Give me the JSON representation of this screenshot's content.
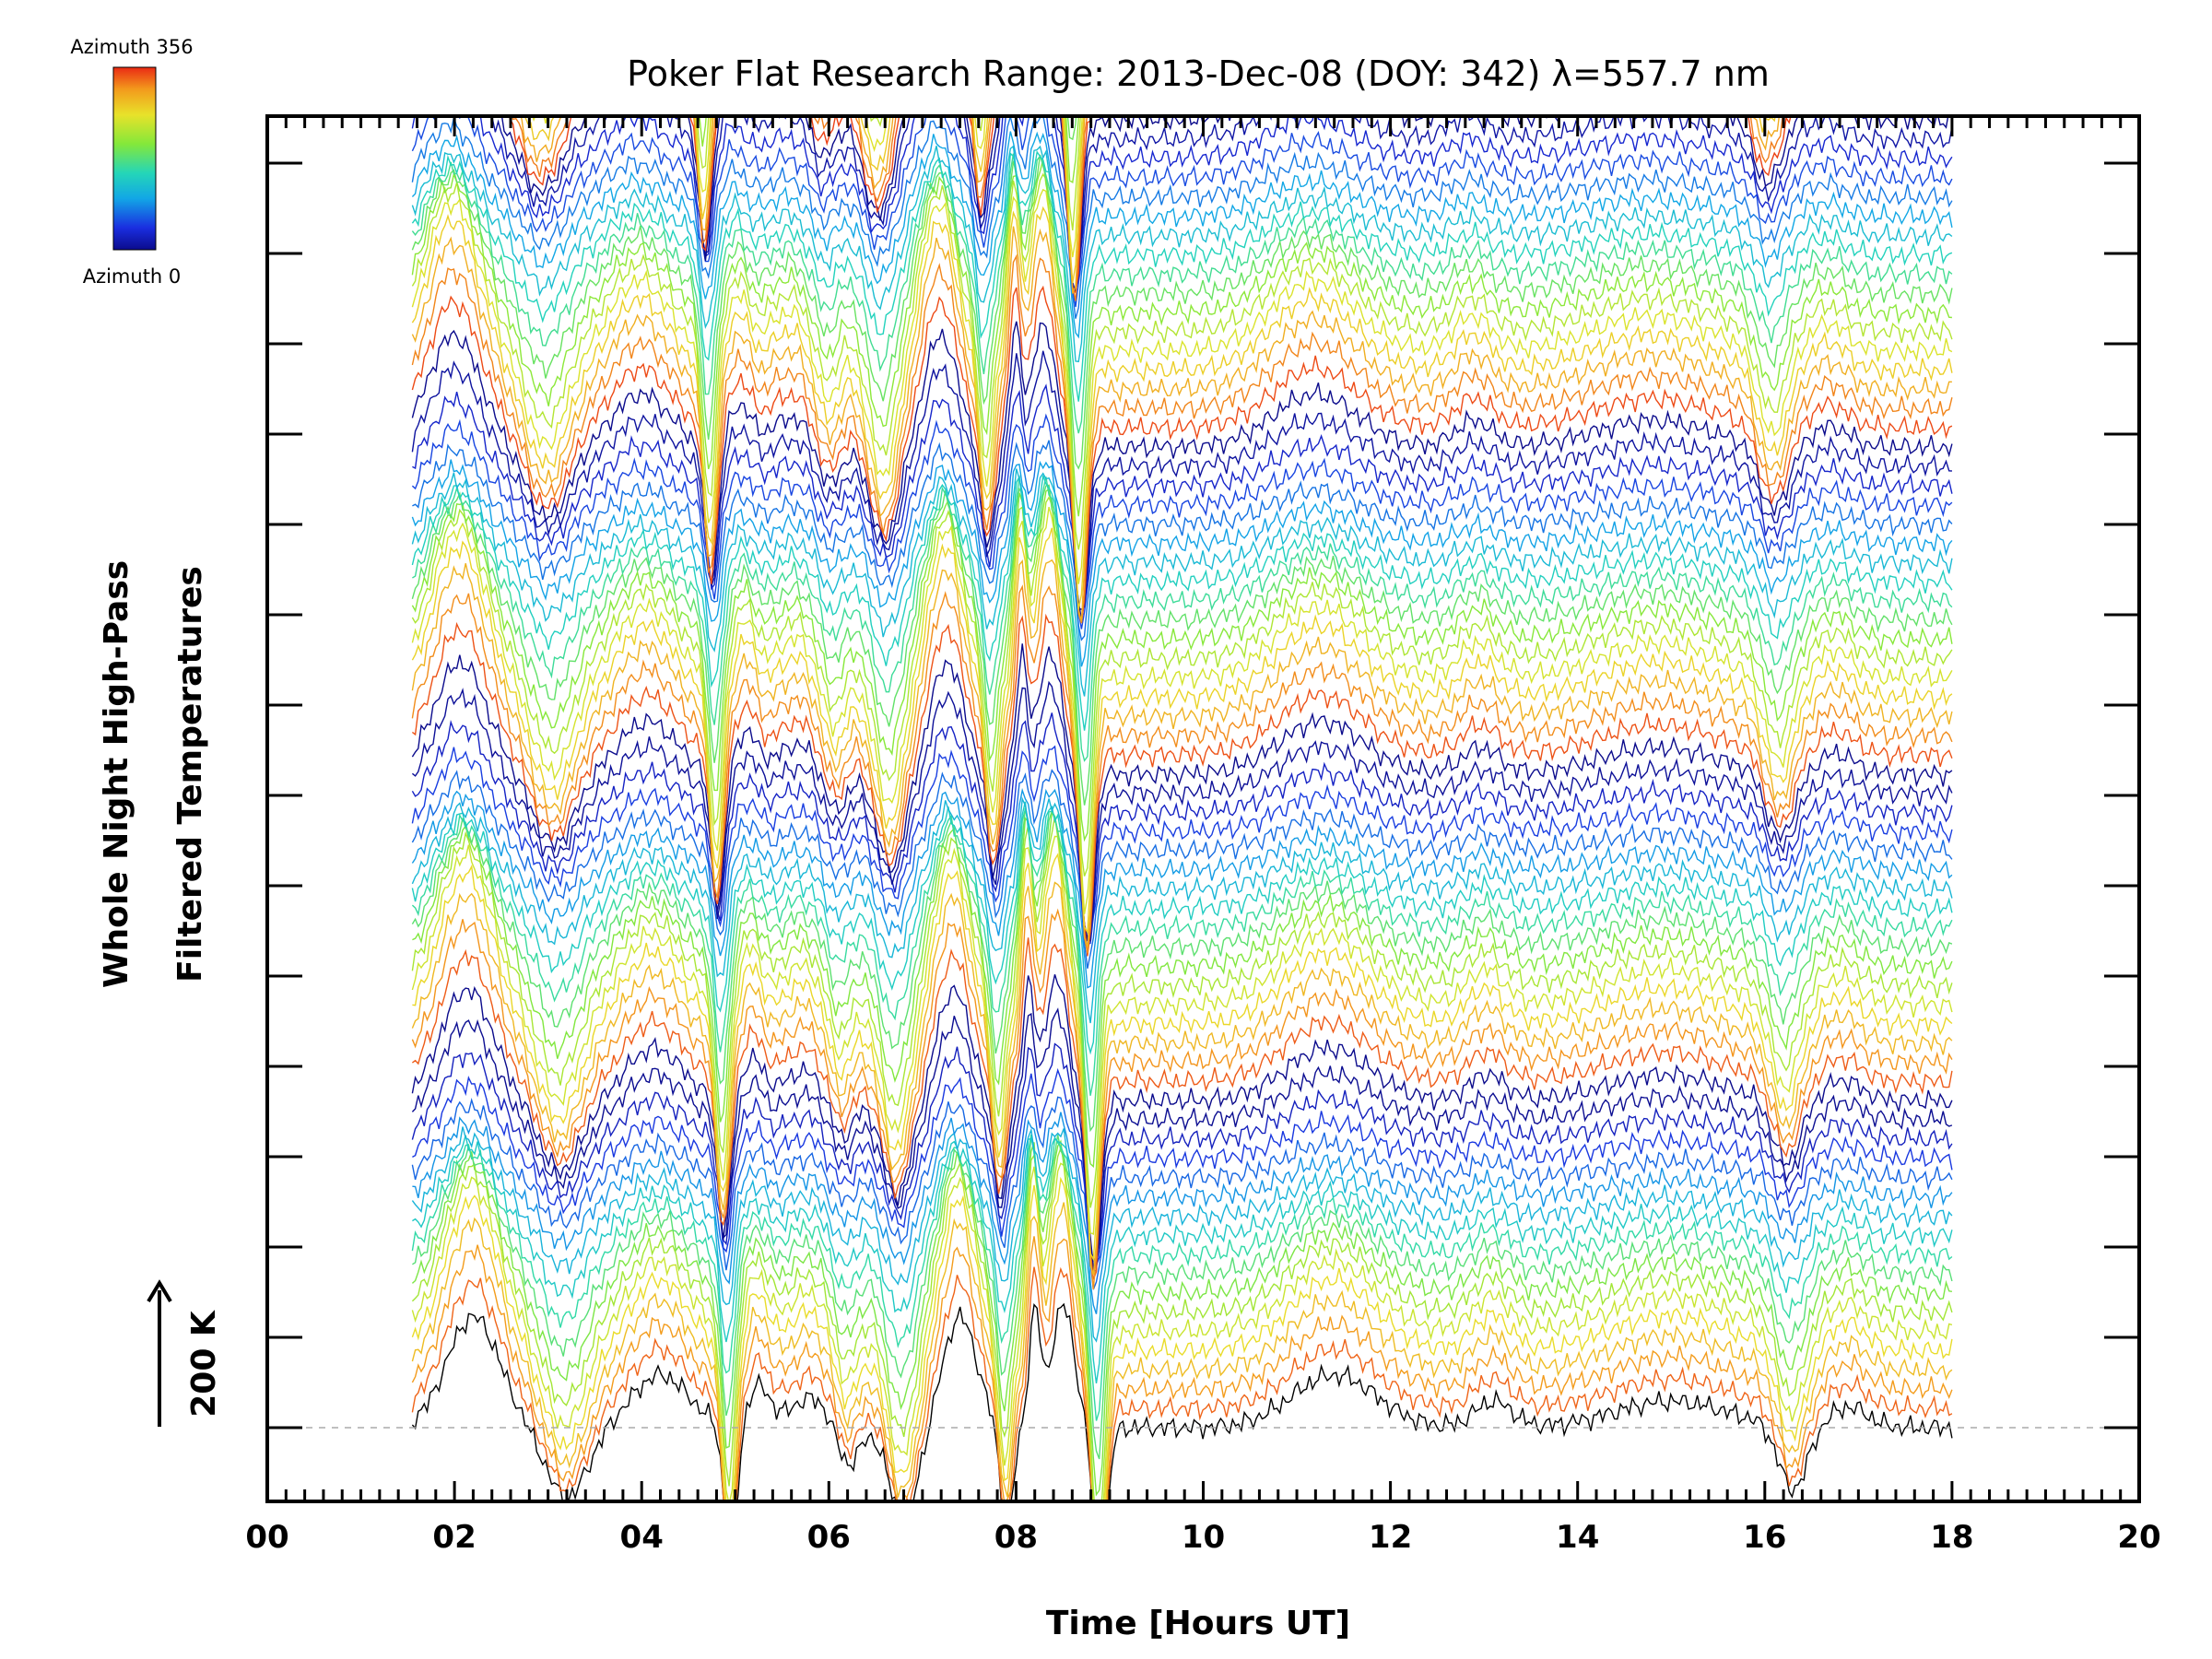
{
  "chart_data": {
    "type": "line",
    "title": "Poker Flat Research Range: 2013-Dec-08 (DOY: 342) λ=557.7 nm",
    "xlabel": "Time [Hours UT]",
    "ylabel": [
      "Whole Night High-Pass",
      "Filtered Temperatures"
    ],
    "xlim": [
      0,
      20
    ],
    "x_unit": "hours UT",
    "x_ticks": [
      "00",
      "02",
      "04",
      "06",
      "08",
      "10",
      "12",
      "14",
      "16",
      "18",
      "20"
    ],
    "y_tick_count": 15,
    "data_start_hour": 1.55,
    "data_end_hour": 18.0,
    "series_count": 120,
    "series_offset_K": 28,
    "azimuth_cycles": 7,
    "scale_bar": {
      "label": "200 K",
      "value_K": 200
    },
    "colorbar": {
      "top_label": "Azimuth 356",
      "bottom_label": "Azimuth 0",
      "min": 0,
      "max": 356
    },
    "baseline": {
      "style": "dashed",
      "color": "#aaaaaa"
    },
    "features_hours": [
      {
        "t": 2.2,
        "amp": 190,
        "w": 0.28
      },
      {
        "t": 3.2,
        "amp": -120,
        "w": 0.22
      },
      {
        "t": 4.2,
        "amp": 90,
        "w": 0.3
      },
      {
        "t": 4.95,
        "amp": -230,
        "w": 0.07
      },
      {
        "t": 5.25,
        "amp": 70,
        "w": 0.12
      },
      {
        "t": 5.8,
        "amp": 50,
        "w": 0.22
      },
      {
        "t": 6.2,
        "amp": -70,
        "w": 0.12
      },
      {
        "t": 6.8,
        "amp": -160,
        "w": 0.15
      },
      {
        "t": 7.4,
        "amp": 190,
        "w": 0.18
      },
      {
        "t": 7.9,
        "amp": -170,
        "w": 0.07
      },
      {
        "t": 8.2,
        "amp": 200,
        "w": 0.06
      },
      {
        "t": 8.5,
        "amp": 210,
        "w": 0.12
      },
      {
        "t": 8.9,
        "amp": -300,
        "w": 0.07
      },
      {
        "t": 11.4,
        "amp": 90,
        "w": 0.45
      },
      {
        "t": 13.1,
        "amp": 45,
        "w": 0.2
      },
      {
        "t": 15.0,
        "amp": 45,
        "w": 0.6
      },
      {
        "t": 16.3,
        "amp": -110,
        "w": 0.15
      },
      {
        "t": 16.9,
        "amp": 35,
        "w": 0.2
      }
    ],
    "colors": {
      "axis": "#000000",
      "background": "#ffffff"
    }
  }
}
